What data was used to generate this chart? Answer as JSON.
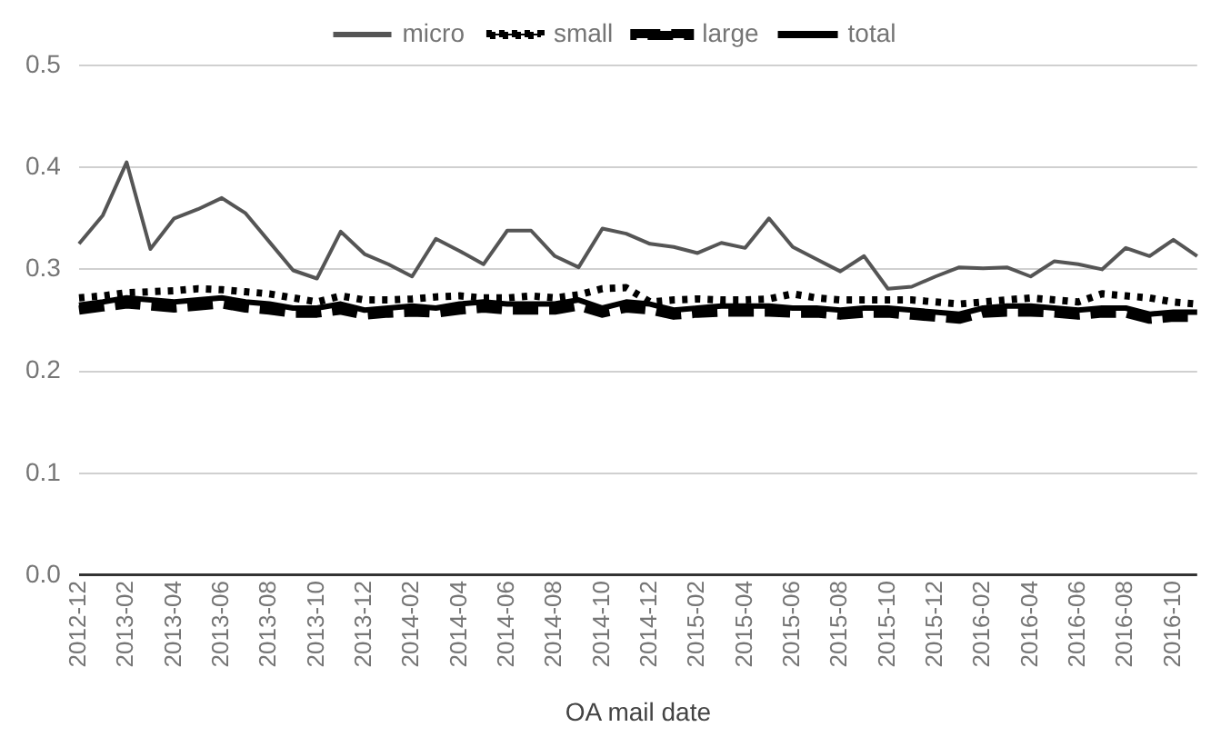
{
  "chart_data": {
    "type": "line",
    "xlabel": "OA mail date",
    "categories": [
      "2012-12",
      null,
      "2013-02",
      null,
      "2013-04",
      null,
      "2013-06",
      null,
      "2013-08",
      null,
      "2013-10",
      null,
      "2013-12",
      null,
      "2014-02",
      null,
      "2014-04",
      null,
      "2014-06",
      null,
      "2014-08",
      null,
      "2014-10",
      null,
      "2014-12",
      null,
      "2015-02",
      null,
      "2015-04",
      null,
      "2015-06",
      null,
      "2015-08",
      null,
      "2015-10",
      null,
      "2015-12",
      null,
      "2016-02",
      null,
      "2016-04",
      null,
      "2016-06",
      null,
      "2016-08",
      null,
      "2016-10",
      null
    ],
    "series": [
      {
        "name": "micro",
        "color": "#555555",
        "line_style": "solid",
        "values": [
          0.325,
          0.353,
          0.405,
          0.32,
          0.35,
          0.359,
          0.37,
          0.355,
          0.327,
          0.299,
          0.291,
          0.337,
          0.315,
          0.305,
          0.293,
          0.33,
          0.318,
          0.305,
          0.338,
          0.338,
          0.313,
          0.302,
          0.34,
          0.335,
          0.325,
          0.322,
          0.316,
          0.326,
          0.321,
          0.35,
          0.322,
          0.31,
          0.298,
          0.313,
          0.281,
          0.283,
          0.293,
          0.302,
          0.301,
          0.302,
          0.293,
          0.308,
          0.305,
          0.3,
          0.321,
          0.313,
          0.329,
          0.313
        ]
      },
      {
        "name": "small",
        "color": "#000000",
        "line_style": "dotted",
        "values": [
          0.272,
          0.274,
          0.277,
          0.278,
          0.279,
          0.281,
          0.28,
          0.278,
          0.276,
          0.272,
          0.268,
          0.274,
          0.27,
          0.27,
          0.271,
          0.273,
          0.274,
          0.272,
          0.272,
          0.274,
          0.272,
          0.275,
          0.281,
          0.282,
          0.268,
          0.27,
          0.271,
          0.27,
          0.27,
          0.271,
          0.276,
          0.272,
          0.27,
          0.27,
          0.27,
          0.27,
          0.268,
          0.266,
          0.268,
          0.27,
          0.272,
          0.27,
          0.268,
          0.276,
          0.274,
          0.272,
          0.268,
          0.266
        ]
      },
      {
        "name": "large",
        "color": "#000000",
        "line_style": "dashed",
        "values": [
          0.26,
          0.263,
          0.266,
          0.264,
          0.262,
          0.264,
          0.266,
          0.262,
          0.26,
          0.257,
          0.257,
          0.26,
          0.255,
          0.257,
          0.258,
          0.257,
          0.26,
          0.262,
          0.26,
          0.26,
          0.26,
          0.264,
          0.257,
          0.262,
          0.26,
          0.255,
          0.257,
          0.258,
          0.258,
          0.258,
          0.257,
          0.257,
          0.255,
          0.257,
          0.257,
          0.255,
          0.253,
          0.251,
          0.257,
          0.258,
          0.258,
          0.257,
          0.255,
          0.257,
          0.257,
          0.251,
          0.253,
          0.253
        ]
      },
      {
        "name": "total",
        "color": "#000000",
        "line_style": "solid",
        "values": [
          0.265,
          0.268,
          0.272,
          0.27,
          0.268,
          0.27,
          0.272,
          0.268,
          0.266,
          0.262,
          0.262,
          0.266,
          0.26,
          0.262,
          0.264,
          0.262,
          0.266,
          0.268,
          0.266,
          0.266,
          0.266,
          0.27,
          0.262,
          0.268,
          0.266,
          0.26,
          0.262,
          0.264,
          0.264,
          0.264,
          0.262,
          0.262,
          0.26,
          0.262,
          0.262,
          0.26,
          0.258,
          0.256,
          0.262,
          0.264,
          0.264,
          0.262,
          0.26,
          0.262,
          0.262,
          0.256,
          0.258,
          0.258
        ]
      }
    ],
    "ylim": [
      0,
      0.5
    ],
    "yticks": [
      {
        "value": 0,
        "label": "0.0"
      },
      {
        "value": 0.1,
        "label": "0.1"
      },
      {
        "value": 0.2,
        "label": "0.2"
      },
      {
        "value": 0.3,
        "label": "0.3"
      },
      {
        "value": 0.4,
        "label": "0.4"
      },
      {
        "value": 0.5,
        "label": "0.5"
      }
    ],
    "grid": "y",
    "legend": "top",
    "marker": "none"
  }
}
